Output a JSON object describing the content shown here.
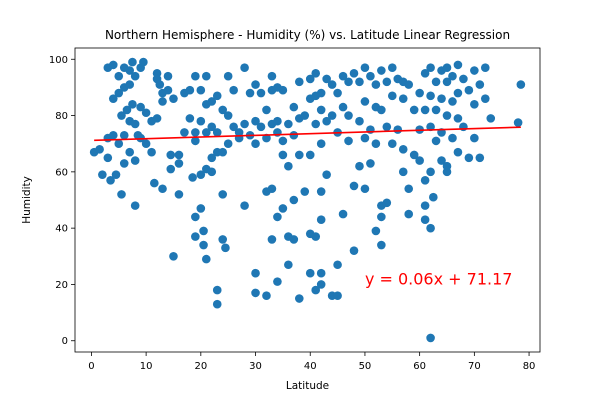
{
  "chart_data": {
    "type": "scatter",
    "title": "Northern Hemisphere - Humidity (%) vs. Latitude Linear Regression",
    "xlabel": "Latitude",
    "ylabel": "Humidity",
    "xlim": [
      -3,
      82
    ],
    "ylim": [
      -4,
      104
    ],
    "xticks": [
      0,
      10,
      20,
      30,
      40,
      50,
      60,
      70,
      80
    ],
    "yticks": [
      0,
      20,
      40,
      60,
      80,
      100
    ],
    "grid": false,
    "series": [
      {
        "color": "#1f77b4",
        "points": [
          [
            0.5,
            67
          ],
          [
            1.5,
            68
          ],
          [
            2,
            59
          ],
          [
            3,
            97
          ],
          [
            3,
            65
          ],
          [
            3,
            72
          ],
          [
            3.5,
            57
          ],
          [
            4,
            98
          ],
          [
            4,
            86
          ],
          [
            4,
            73
          ],
          [
            4.5,
            59
          ],
          [
            5,
            94
          ],
          [
            5,
            88
          ],
          [
            5,
            70
          ],
          [
            5.5,
            52
          ],
          [
            5.5,
            80
          ],
          [
            6,
            97
          ],
          [
            6,
            90
          ],
          [
            6,
            73
          ],
          [
            6,
            63
          ],
          [
            6.5,
            82
          ],
          [
            7,
            96
          ],
          [
            7,
            91
          ],
          [
            7,
            78
          ],
          [
            7,
            67
          ],
          [
            7.5,
            99
          ],
          [
            7.5,
            84
          ],
          [
            8,
            94
          ],
          [
            8,
            77
          ],
          [
            8,
            64
          ],
          [
            8,
            48
          ],
          [
            8.5,
            73
          ],
          [
            9,
            97
          ],
          [
            9,
            83
          ],
          [
            9,
            72
          ],
          [
            9.5,
            99
          ],
          [
            10,
            81
          ],
          [
            10,
            70
          ],
          [
            11,
            67
          ],
          [
            11,
            78
          ],
          [
            11.5,
            56
          ],
          [
            12,
            95
          ],
          [
            12,
            93
          ],
          [
            12,
            79
          ],
          [
            12.5,
            91
          ],
          [
            13,
            88
          ],
          [
            13,
            85
          ],
          [
            13,
            54
          ],
          [
            14,
            94
          ],
          [
            14,
            89
          ],
          [
            14.5,
            66
          ],
          [
            14.5,
            61
          ],
          [
            15,
            86
          ],
          [
            15,
            30
          ],
          [
            16,
            66
          ],
          [
            16,
            63
          ],
          [
            16,
            52
          ],
          [
            17,
            88
          ],
          [
            17,
            74
          ],
          [
            18,
            89
          ],
          [
            18,
            79
          ],
          [
            18.5,
            58
          ],
          [
            19,
            94
          ],
          [
            19,
            74
          ],
          [
            19,
            71
          ],
          [
            19,
            44
          ],
          [
            19,
            37
          ],
          [
            20,
            89
          ],
          [
            20,
            78
          ],
          [
            20,
            59
          ],
          [
            20,
            47
          ],
          [
            20.5,
            39
          ],
          [
            20.5,
            34
          ],
          [
            21,
            94
          ],
          [
            21,
            84
          ],
          [
            21,
            74
          ],
          [
            21,
            61
          ],
          [
            21,
            29
          ],
          [
            22,
            85
          ],
          [
            22,
            76
          ],
          [
            22,
            65
          ],
          [
            22,
            60
          ],
          [
            23,
            87
          ],
          [
            23,
            74
          ],
          [
            23,
            67
          ],
          [
            23,
            18
          ],
          [
            23,
            13
          ],
          [
            24,
            82
          ],
          [
            24,
            67
          ],
          [
            24,
            52
          ],
          [
            24,
            36
          ],
          [
            24.5,
            33
          ],
          [
            25,
            94
          ],
          [
            25,
            80
          ],
          [
            25,
            70
          ],
          [
            26,
            89
          ],
          [
            26,
            76
          ],
          [
            27,
            74
          ],
          [
            27,
            72
          ],
          [
            28,
            97
          ],
          [
            28,
            77
          ],
          [
            28,
            48
          ],
          [
            29,
            88
          ],
          [
            29,
            73
          ],
          [
            30,
            91
          ],
          [
            30,
            78
          ],
          [
            30,
            70
          ],
          [
            30,
            24
          ],
          [
            30,
            17
          ],
          [
            31,
            88
          ],
          [
            31,
            76
          ],
          [
            32,
            82
          ],
          [
            32,
            72
          ],
          [
            32,
            53
          ],
          [
            32,
            16
          ],
          [
            33,
            94
          ],
          [
            33,
            89
          ],
          [
            33,
            77
          ],
          [
            33,
            54
          ],
          [
            33,
            36
          ],
          [
            34,
            90
          ],
          [
            34,
            78
          ],
          [
            34,
            74
          ],
          [
            34,
            44
          ],
          [
            34,
            21
          ],
          [
            35,
            89
          ],
          [
            35,
            71
          ],
          [
            35,
            66
          ],
          [
            35,
            47
          ],
          [
            36,
            77
          ],
          [
            36,
            62
          ],
          [
            36,
            37
          ],
          [
            36,
            27
          ],
          [
            37,
            83
          ],
          [
            37,
            73
          ],
          [
            37,
            50
          ],
          [
            37,
            36
          ],
          [
            38,
            92
          ],
          [
            38,
            79
          ],
          [
            38,
            66
          ],
          [
            38,
            15
          ],
          [
            39,
            80
          ],
          [
            39,
            53
          ],
          [
            40,
            93
          ],
          [
            40,
            86
          ],
          [
            40,
            66
          ],
          [
            40,
            38
          ],
          [
            40,
            24
          ],
          [
            41,
            95
          ],
          [
            41,
            87
          ],
          [
            41,
            77
          ],
          [
            41,
            18
          ],
          [
            41,
            37
          ],
          [
            42,
            88
          ],
          [
            42,
            82
          ],
          [
            42,
            70
          ],
          [
            42,
            43
          ],
          [
            42,
            53
          ],
          [
            42,
            20
          ],
          [
            42,
            24
          ],
          [
            43,
            93
          ],
          [
            43,
            78
          ],
          [
            43,
            59
          ],
          [
            44,
            91
          ],
          [
            44,
            80
          ],
          [
            44,
            16
          ],
          [
            45,
            88
          ],
          [
            45,
            74
          ],
          [
            45,
            27
          ],
          [
            45,
            16
          ],
          [
            46,
            94
          ],
          [
            46,
            83
          ],
          [
            46,
            45
          ],
          [
            47,
            92
          ],
          [
            47,
            80
          ],
          [
            47,
            71
          ],
          [
            48,
            95
          ],
          [
            48,
            55
          ],
          [
            48,
            32
          ],
          [
            49,
            92
          ],
          [
            49,
            78
          ],
          [
            49,
            62
          ],
          [
            50,
            97
          ],
          [
            50,
            85
          ],
          [
            50,
            72
          ],
          [
            50,
            54
          ],
          [
            51,
            94
          ],
          [
            51,
            75
          ],
          [
            51,
            63
          ],
          [
            52,
            91
          ],
          [
            52,
            83
          ],
          [
            52,
            70
          ],
          [
            52,
            39
          ],
          [
            53,
            96
          ],
          [
            53,
            82
          ],
          [
            53,
            48
          ],
          [
            53,
            44
          ],
          [
            53,
            34
          ],
          [
            54,
            92
          ],
          [
            54,
            76
          ],
          [
            54,
            49
          ],
          [
            55,
            97
          ],
          [
            55,
            87
          ],
          [
            55,
            70
          ],
          [
            56,
            93
          ],
          [
            56,
            75
          ],
          [
            57,
            92
          ],
          [
            57,
            86
          ],
          [
            57,
            68
          ],
          [
            57,
            60
          ],
          [
            58,
            91
          ],
          [
            58,
            45
          ],
          [
            58,
            54
          ],
          [
            59,
            82
          ],
          [
            59,
            66
          ],
          [
            60,
            88
          ],
          [
            60,
            75
          ],
          [
            60,
            64
          ],
          [
            61,
            95
          ],
          [
            61,
            82
          ],
          [
            61,
            48
          ],
          [
            61,
            57
          ],
          [
            61,
            43
          ],
          [
            62,
            97
          ],
          [
            62,
            87
          ],
          [
            62,
            76
          ],
          [
            62,
            60
          ],
          [
            62,
            40
          ],
          [
            62,
            1
          ],
          [
            62.5,
            51
          ],
          [
            63,
            92
          ],
          [
            63,
            82
          ],
          [
            63,
            71
          ],
          [
            64,
            96
          ],
          [
            64,
            86
          ],
          [
            64,
            74
          ],
          [
            64,
            64
          ],
          [
            65,
            97
          ],
          [
            65,
            92
          ],
          [
            65,
            80
          ],
          [
            65,
            60
          ],
          [
            65,
            62
          ],
          [
            66,
            94
          ],
          [
            66,
            85
          ],
          [
            66,
            72
          ],
          [
            67,
            98
          ],
          [
            67,
            88
          ],
          [
            67,
            79
          ],
          [
            67,
            67
          ],
          [
            68,
            93
          ],
          [
            68,
            76
          ],
          [
            69,
            89
          ],
          [
            69,
            65
          ],
          [
            70,
            96
          ],
          [
            70,
            84
          ],
          [
            70,
            72
          ],
          [
            71,
            91
          ],
          [
            71,
            65
          ],
          [
            72,
            97
          ],
          [
            72,
            86
          ],
          [
            73,
            79
          ],
          [
            78,
            77.5
          ],
          [
            78.5,
            91
          ]
        ]
      }
    ],
    "regression": {
      "color": "#ff0000",
      "slope": 0.06,
      "intercept": 71.17,
      "x_range": [
        0.5,
        78.5
      ]
    },
    "annotation": {
      "text": "y = 0.06x + 71.17",
      "x": 50,
      "y": 20,
      "color": "#ff0000"
    }
  }
}
